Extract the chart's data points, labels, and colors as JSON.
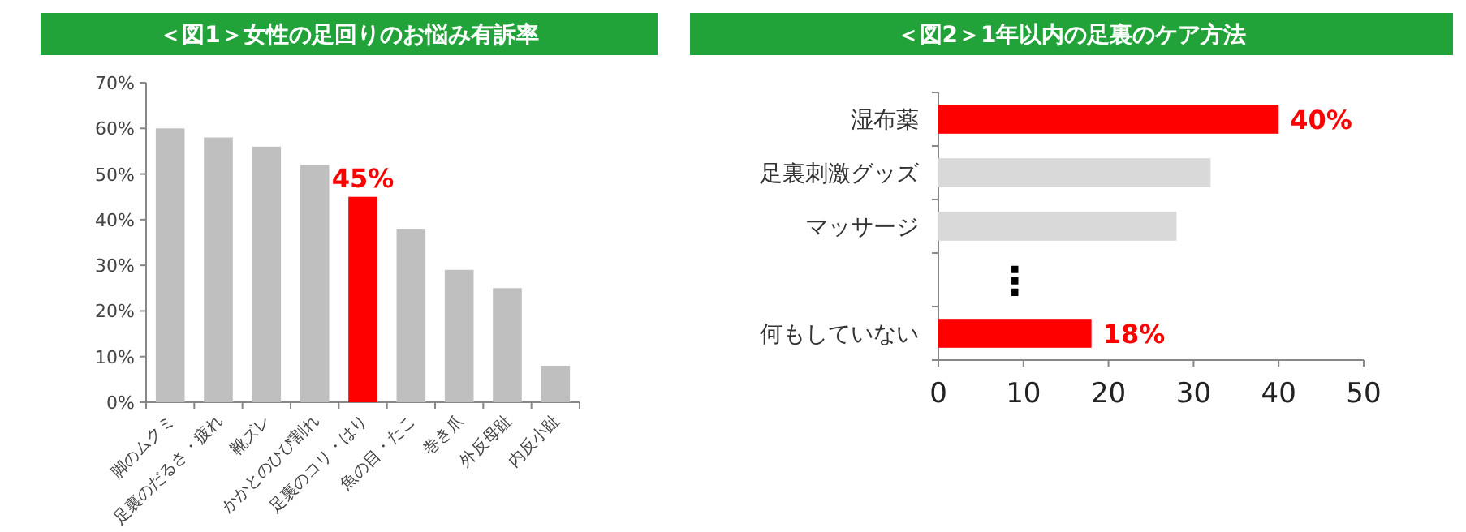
{
  "chart_data": [
    {
      "type": "bar",
      "title": "＜図1＞女性の足回りのお悩み有訴率",
      "categories": [
        "脚のムクミ",
        "足裏のだるさ・疲れ",
        "靴ズレ",
        "かかとのひび割れ",
        "足裏のコリ・はり",
        "魚の目・たこ",
        "巻き爪",
        "外反母趾",
        "内反小趾"
      ],
      "values": [
        60,
        58,
        56,
        52,
        45,
        38,
        29,
        25,
        8
      ],
      "colors": [
        "#bfbfbf",
        "#bfbfbf",
        "#bfbfbf",
        "#bfbfbf",
        "#ff0000",
        "#bfbfbf",
        "#bfbfbf",
        "#bfbfbf",
        "#bfbfbf"
      ],
      "value_labels": [
        null,
        null,
        null,
        null,
        "45%",
        null,
        null,
        null,
        null
      ],
      "ylim": [
        0,
        70
      ],
      "yticks": [
        {
          "value": 0,
          "label": "0%"
        },
        {
          "value": 10,
          "label": "10%"
        },
        {
          "value": 20,
          "label": "20%"
        },
        {
          "value": 30,
          "label": "30%"
        },
        {
          "value": 40,
          "label": "40%"
        },
        {
          "value": 50,
          "label": "50%"
        },
        {
          "value": 60,
          "label": "60%"
        },
        {
          "value": 70,
          "label": "70%"
        }
      ]
    },
    {
      "type": "bar",
      "title": "＜図2＞1年以内の足裏のケア方法",
      "orientation": "horizontal",
      "categories": [
        "湿布薬",
        "足裏刺激グッズ",
        "マッサージ",
        null,
        "何もしていない"
      ],
      "values": [
        40,
        32,
        28,
        null,
        18
      ],
      "colors": [
        "#ff0000",
        "#d9d9d9",
        "#d9d9d9",
        null,
        "#ff0000"
      ],
      "value_labels": [
        "40%",
        null,
        null,
        null,
        "18%"
      ],
      "annotations": [
        "⋮"
      ],
      "xlim": [
        0,
        50
      ],
      "xticks": [
        0,
        10,
        20,
        30,
        40,
        50
      ]
    }
  ]
}
